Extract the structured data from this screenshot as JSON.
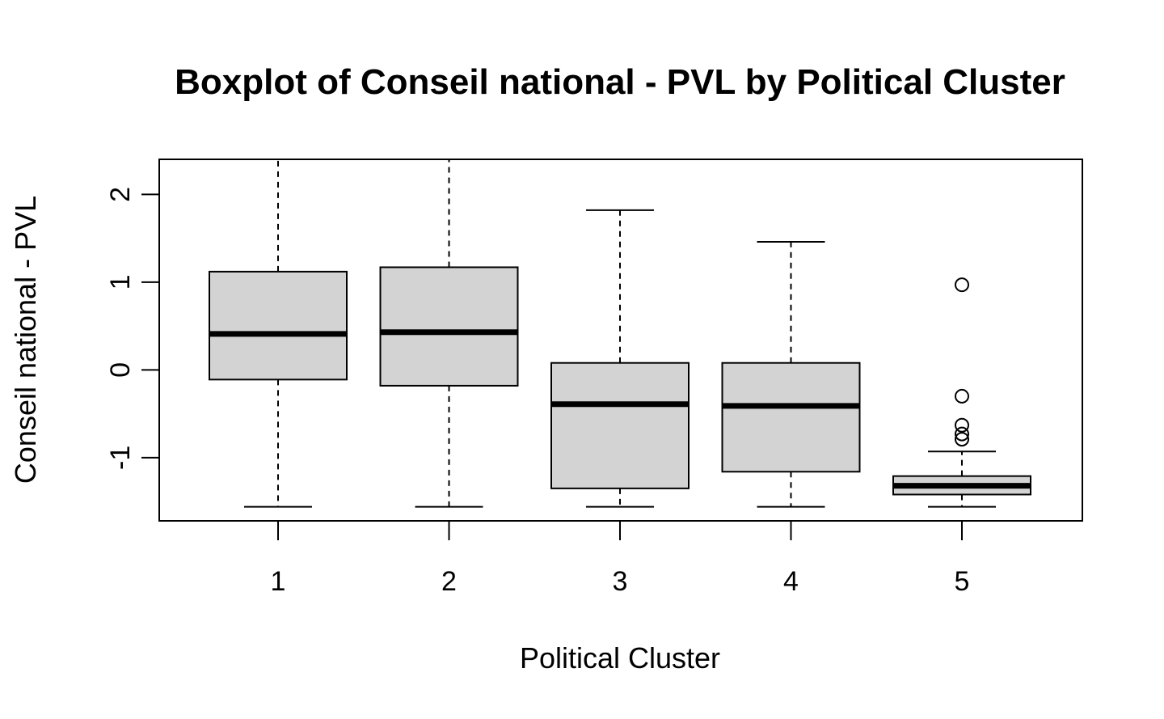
{
  "chart_data": {
    "type": "boxplot",
    "title": "Boxplot of Conseil national - PVL by Political Cluster",
    "xlabel": "Political Cluster",
    "ylabel": "Conseil national - PVL",
    "categories": [
      "1",
      "2",
      "3",
      "4",
      "5"
    ],
    "ylim": [
      -1.72,
      2.4
    ],
    "yticks": [
      -1,
      0,
      1,
      2
    ],
    "ytick_labels": [
      "-1",
      "0",
      "1",
      "2"
    ],
    "grid": false,
    "legend": "none",
    "box_fill": "#d3d3d3",
    "line_color": "#000000",
    "boxes": [
      {
        "category": "1",
        "whisker_low": -1.56,
        "q1": -0.11,
        "median": 0.41,
        "q3": 1.12,
        "whisker_high": 2.4,
        "outliers": []
      },
      {
        "category": "2",
        "whisker_low": -1.56,
        "q1": -0.18,
        "median": 0.43,
        "q3": 1.17,
        "whisker_high": 2.4,
        "outliers": []
      },
      {
        "category": "3",
        "whisker_low": -1.56,
        "q1": -1.35,
        "median": -0.39,
        "q3": 0.08,
        "whisker_high": 1.82,
        "outliers": []
      },
      {
        "category": "4",
        "whisker_low": -1.56,
        "q1": -1.16,
        "median": -0.41,
        "q3": 0.08,
        "whisker_high": 1.46,
        "outliers": []
      },
      {
        "category": "5",
        "whisker_low": -1.56,
        "q1": -1.42,
        "median": -1.32,
        "q3": -1.21,
        "whisker_high": -0.93,
        "outliers": [
          0.97,
          -0.3,
          -0.63,
          -0.73,
          -0.79
        ]
      }
    ]
  }
}
